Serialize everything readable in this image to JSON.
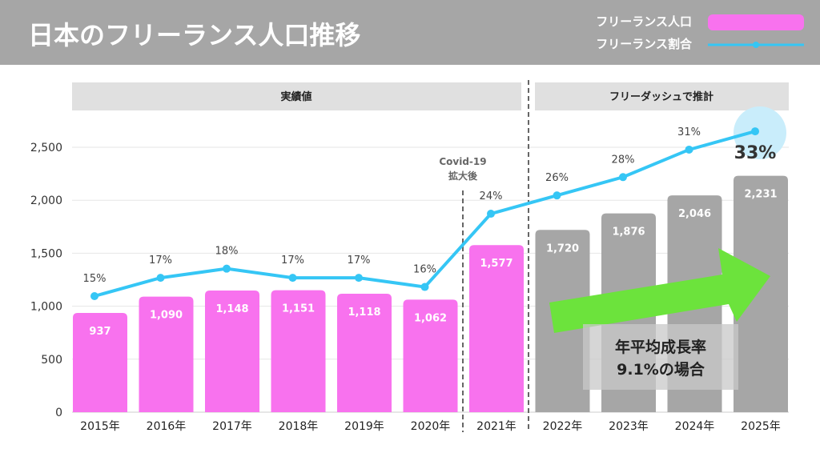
{
  "header": {
    "title": "日本のフリーランス人口推移"
  },
  "legend": {
    "population": "フリーランス人口",
    "ratio": "フリーランス割合"
  },
  "sections": {
    "actual": "実績値",
    "estimate": "フリーダッシュで推計"
  },
  "annotation": {
    "covid_line1": "Covid-19",
    "covid_line2": "拡大後",
    "growth_line1": "年平均成長率",
    "growth_line2": "9.1%の場合"
  },
  "colors": {
    "header": "#a6a6a6",
    "pink": "#f872ee",
    "gray_bar": "#a6a6a6",
    "line": "#35c6f5",
    "arrow": "#6ce33c"
  },
  "chart_data": {
    "type": "bar",
    "categories": [
      "2015年",
      "2016年",
      "2017年",
      "2018年",
      "2019年",
      "2020年",
      "2021年",
      "2022年",
      "2023年",
      "2024年",
      "2025年"
    ],
    "series": [
      {
        "name": "フリーランス人口",
        "type": "bar",
        "values": [
          937,
          1090,
          1148,
          1151,
          1118,
          1062,
          1577,
          1720,
          1876,
          2046,
          2231
        ],
        "labels": [
          "937",
          "1,090",
          "1,148",
          "1,151",
          "1,118",
          "1,062",
          "1,577",
          "1,720",
          "1,876",
          "2,046",
          "2,231"
        ]
      },
      {
        "name": "フリーランス割合",
        "type": "line",
        "values": [
          15,
          17,
          18,
          17,
          17,
          16,
          24,
          26,
          28,
          31,
          33
        ],
        "labels": [
          "15%",
          "17%",
          "18%",
          "17%",
          "17%",
          "16%",
          "24%",
          "26%",
          "28%",
          "31%",
          "33%"
        ]
      }
    ],
    "estimated_from": "2022年",
    "yticks": [
      "0",
      "500",
      "1,000",
      "1,500",
      "2,000",
      "2,500"
    ],
    "ylim": [
      0,
      2500
    ],
    "grid": true
  }
}
